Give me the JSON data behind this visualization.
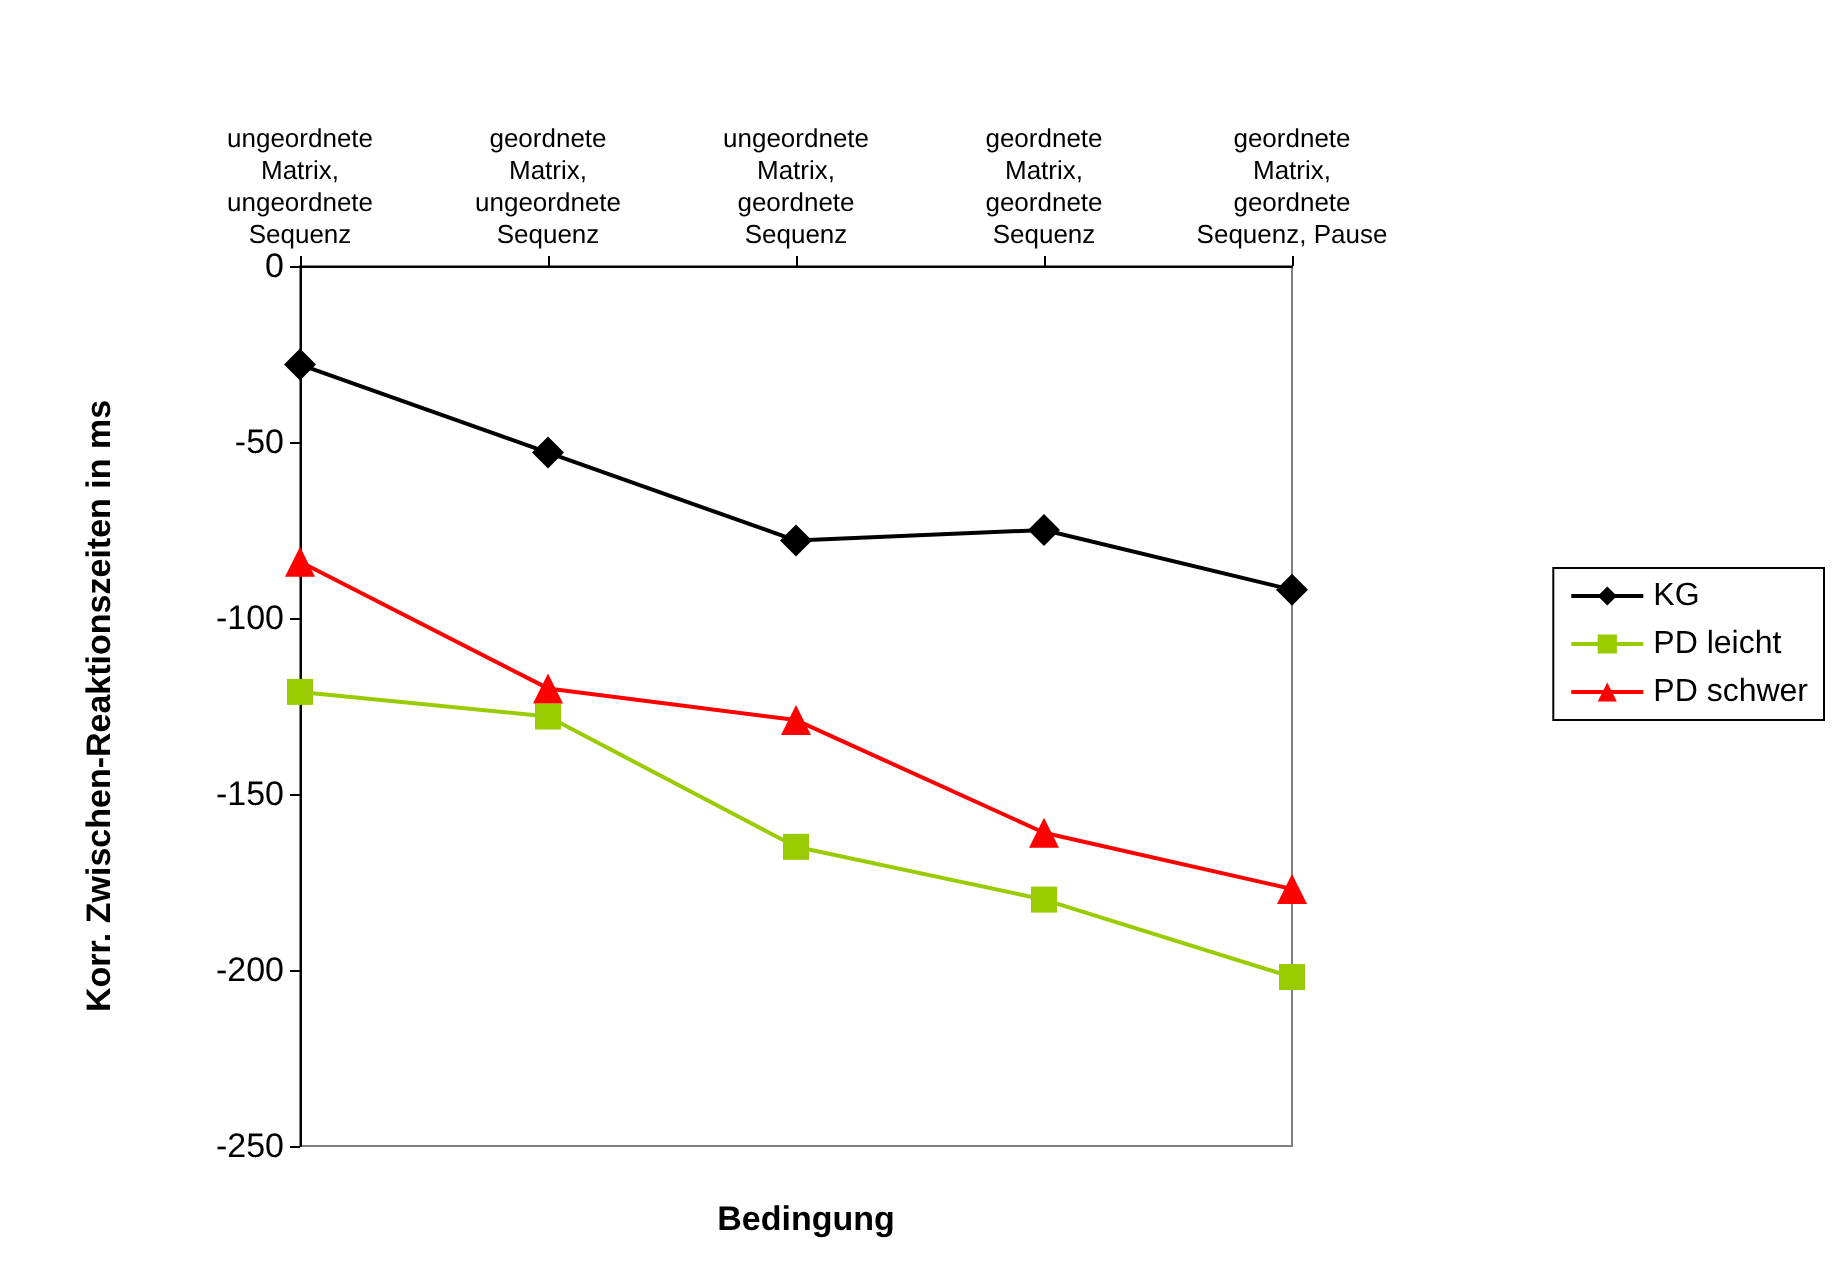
{
  "chart_data": {
    "type": "line",
    "xlabel": "Bedingung",
    "ylabel": "Korr. Zwischen-Reaktionszeiten in ms",
    "categories": [
      "ungeordnete\nMatrix,\nungeordnete\nSequenz",
      "geordnete\nMatrix,\nungeordnete\nSequenz",
      "ungeordnete\nMatrix,\ngeordnete\nSequenz",
      "geordnete\nMatrix,\ngeordnete\nSequenz",
      "geordnete\nMatrix,\ngeordnete\nSequenz, Pause"
    ],
    "series": [
      {
        "name": "KG",
        "color": "#000000",
        "marker": "diamond",
        "values": [
          -28,
          -53,
          -78,
          -75,
          -92
        ]
      },
      {
        "name": "PD leicht",
        "color": "#99cc00",
        "marker": "square",
        "values": [
          -121,
          -128,
          -165,
          -180,
          -202
        ]
      },
      {
        "name": "PD schwer",
        "color": "#ff0000",
        "marker": "triangle",
        "values": [
          -84,
          -120,
          -129,
          -161,
          -177
        ]
      }
    ],
    "ylim": [
      -250,
      0
    ],
    "yticks": [
      -250,
      -200,
      -150,
      -100,
      -50,
      0
    ],
    "grid": false,
    "legend": "right",
    "line_style": "solid"
  }
}
